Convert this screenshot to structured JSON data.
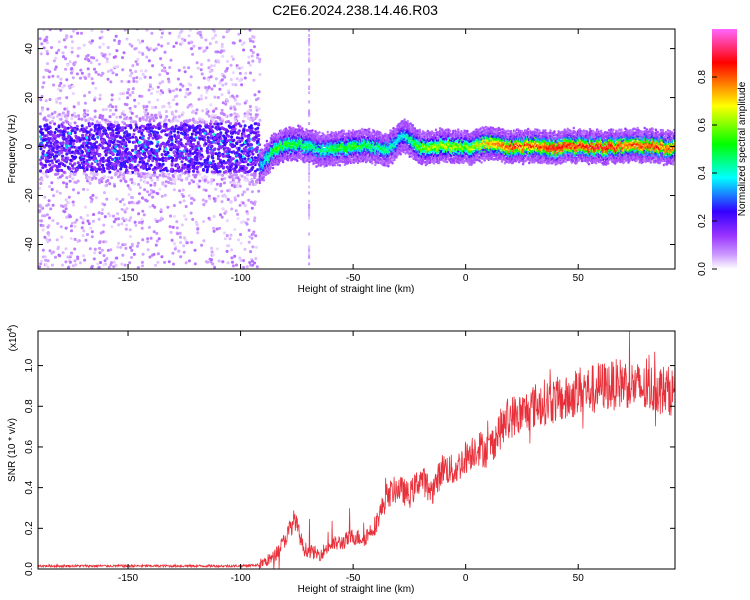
{
  "title": "C2E6.2024.238.14.46.R03",
  "chart_data": [
    {
      "type": "heatmap",
      "xlabel": "Height of straight line (km)",
      "ylabel": "Frequency (Hz)",
      "xlim": [
        -190,
        93
      ],
      "ylim": [
        -50,
        48
      ],
      "xticks": [
        -150,
        -100,
        -50,
        0,
        50
      ],
      "yticks": [
        -40,
        -20,
        0,
        20,
        40
      ],
      "colorbar": {
        "label": "Normalized spectral amplitude",
        "range": [
          0,
          1
        ],
        "ticks": [
          0.0,
          0.2,
          0.4,
          0.6,
          0.8
        ],
        "colors": [
          "#ffffff",
          "#cc99ff",
          "#9933ff",
          "#3300ff",
          "#00ffff",
          "#00ff00",
          "#ffff00",
          "#ff0000",
          "#ff66ff"
        ]
      },
      "ridge": {
        "x": [
          -92,
          -85,
          -75,
          -65,
          -55,
          -45,
          -35,
          -28,
          -20,
          -10,
          0,
          10,
          20,
          30,
          40,
          50,
          60,
          70,
          80,
          92
        ],
        "frequency": [
          -8,
          0,
          2,
          -1,
          0,
          1,
          -1,
          5,
          0,
          1,
          0,
          2,
          0,
          1,
          0,
          1,
          0,
          1,
          1,
          0
        ],
        "amplitude": [
          0.35,
          0.55,
          0.5,
          0.45,
          0.55,
          0.5,
          0.45,
          0.4,
          0.6,
          0.65,
          0.6,
          0.75,
          0.85,
          0.8,
          0.9,
          0.85,
          0.9,
          0.8,
          0.85,
          0.8
        ]
      }
    },
    {
      "type": "line",
      "xlabel": "Height of straight line (km)",
      "ylabel": "SNR (10 * v/v)",
      "y_multiplier": "(x10",
      "y_multiplier_exp": "4",
      "xlim": [
        -190,
        93
      ],
      "ylim": [
        0,
        1.17
      ],
      "xticks": [
        -150,
        -100,
        -50,
        0,
        50
      ],
      "yticks": [
        0.0,
        0.2,
        0.4,
        0.6,
        0.8,
        1.0
      ],
      "color": "#e8303a",
      "series": [
        {
          "x": [
            -190,
            -150,
            -100,
            -92,
            -85,
            -80,
            -76,
            -72,
            -65,
            -60,
            -55,
            -50,
            -45,
            -40,
            -35,
            -30,
            -25,
            -20,
            -15,
            -10,
            -5,
            0,
            5,
            10,
            15,
            20,
            25,
            30,
            35,
            40,
            45,
            50,
            55,
            60,
            65,
            70,
            75,
            80,
            85,
            93
          ],
          "y": [
            0.015,
            0.015,
            0.015,
            0.02,
            0.06,
            0.15,
            0.25,
            0.1,
            0.07,
            0.12,
            0.13,
            0.16,
            0.15,
            0.22,
            0.36,
            0.4,
            0.36,
            0.45,
            0.38,
            0.5,
            0.48,
            0.55,
            0.6,
            0.58,
            0.68,
            0.75,
            0.76,
            0.8,
            0.82,
            0.83,
            0.83,
            0.88,
            0.88,
            0.9,
            0.9,
            0.92,
            0.9,
            0.88,
            0.89,
            0.87
          ]
        }
      ]
    }
  ]
}
